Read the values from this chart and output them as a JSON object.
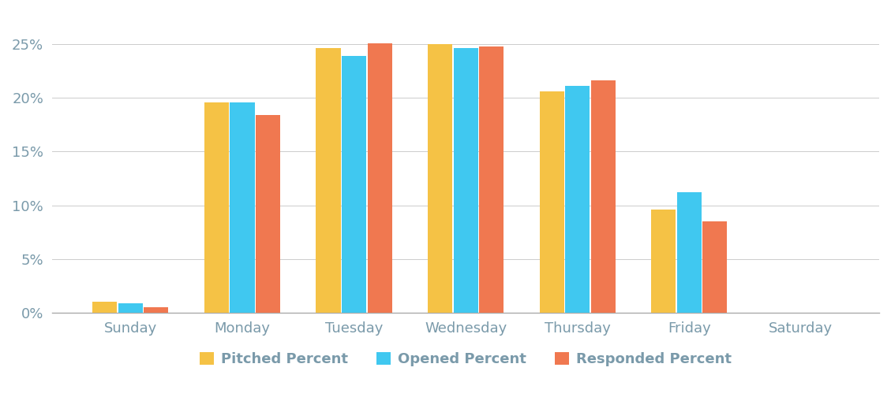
{
  "categories": [
    "Sunday",
    "Monday",
    "Tuesday",
    "Wednesday",
    "Thursday",
    "Friday",
    "Saturday"
  ],
  "pitched": [
    1.0,
    19.6,
    24.6,
    25.0,
    20.6,
    9.6,
    0.0
  ],
  "opened": [
    0.9,
    19.6,
    23.9,
    24.6,
    21.1,
    11.2,
    0.0
  ],
  "responded": [
    0.5,
    18.4,
    25.1,
    24.8,
    21.6,
    8.5,
    0.0
  ],
  "color_pitched": "#F5C245",
  "color_opened": "#40C8F0",
  "color_responded": "#F07850",
  "legend_labels": [
    "Pitched Percent",
    "Opened Percent",
    "Responded Percent"
  ],
  "yticks": [
    0,
    5,
    10,
    15,
    20,
    25
  ],
  "ytick_labels": [
    "0%",
    "5%",
    "10%",
    "15%",
    "20%",
    "25%"
  ],
  "ylim": [
    0,
    28
  ],
  "background_color": "#ffffff",
  "grid_color": "#cccccc",
  "bar_width": 0.22,
  "tick_label_color": "#7a9aaa",
  "tick_fontsize": 13
}
